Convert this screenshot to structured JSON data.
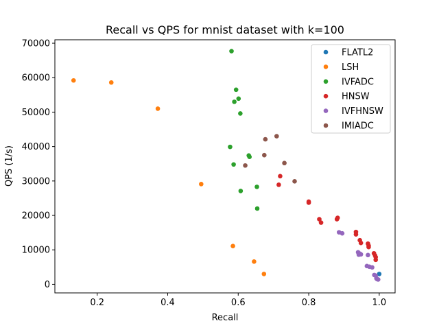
{
  "chart_data": {
    "type": "scatter",
    "title": "Recall vs QPS for mnist dataset with k=100",
    "xlabel": "Recall",
    "ylabel": "QPS (1/s)",
    "xlim": [
      0.08,
      1.045
    ],
    "ylim": [
      -2500,
      71000
    ],
    "x_ticks": [
      0.2,
      0.4,
      0.6,
      0.8,
      1.0
    ],
    "x_tick_labels": [
      "0.2",
      "0.4",
      "0.6",
      "0.8",
      "1.0"
    ],
    "y_ticks": [
      0,
      10000,
      20000,
      30000,
      40000,
      50000,
      60000,
      70000
    ],
    "y_tick_labels": [
      "0",
      "10000",
      "20000",
      "30000",
      "40000",
      "50000",
      "60000",
      "70000"
    ],
    "grid": false,
    "legend_position": "top-right",
    "series": [
      {
        "name": "FLATL2",
        "color": "#1f77b4",
        "points": [
          [
            1.0,
            3000
          ]
        ]
      },
      {
        "name": "LSH",
        "color": "#ff7f0e",
        "points": [
          [
            0.133,
            59200
          ],
          [
            0.24,
            58600
          ],
          [
            0.372,
            51000
          ],
          [
            0.495,
            29100
          ],
          [
            0.585,
            11100
          ],
          [
            0.645,
            6600
          ],
          [
            0.673,
            3000
          ]
        ]
      },
      {
        "name": "IVFADC",
        "color": "#2ca02c",
        "points": [
          [
            0.581,
            67700
          ],
          [
            0.594,
            56500
          ],
          [
            0.601,
            53900
          ],
          [
            0.589,
            53000
          ],
          [
            0.606,
            49600
          ],
          [
            0.577,
            39900
          ],
          [
            0.63,
            37400
          ],
          [
            0.632,
            37000
          ],
          [
            0.587,
            34800
          ],
          [
            0.653,
            28300
          ],
          [
            0.607,
            27100
          ],
          [
            0.654,
            22000
          ]
        ]
      },
      {
        "name": "HNSW",
        "color": "#d62728",
        "points": [
          [
            0.719,
            31400
          ],
          [
            0.715,
            28900
          ],
          [
            0.8,
            24000
          ],
          [
            0.8,
            23700
          ],
          [
            0.882,
            19300
          ],
          [
            0.88,
            18900
          ],
          [
            0.83,
            18900
          ],
          [
            0.835,
            17900
          ],
          [
            0.934,
            15200
          ],
          [
            0.934,
            14500
          ],
          [
            0.945,
            12800
          ],
          [
            0.948,
            12000
          ],
          [
            0.968,
            11800
          ],
          [
            0.97,
            11200
          ],
          [
            0.97,
            10800
          ],
          [
            0.985,
            9000
          ],
          [
            0.988,
            8400
          ],
          [
            0.99,
            7900
          ],
          [
            0.99,
            7100
          ]
        ]
      },
      {
        "name": "IVFHNSW",
        "color": "#9467bd",
        "points": [
          [
            0.886,
            15100
          ],
          [
            0.895,
            14800
          ],
          [
            0.94,
            9300
          ],
          [
            0.945,
            8900
          ],
          [
            0.942,
            8600
          ],
          [
            0.948,
            8700
          ],
          [
            0.968,
            8500
          ],
          [
            0.965,
            5300
          ],
          [
            0.972,
            5100
          ],
          [
            0.98,
            4900
          ],
          [
            0.986,
            2700
          ],
          [
            0.99,
            2500
          ],
          [
            0.992,
            1700
          ],
          [
            0.994,
            1500
          ],
          [
            0.997,
            1400
          ]
        ]
      },
      {
        "name": "IMIADC",
        "color": "#8c564b",
        "points": [
          [
            0.709,
            43000
          ],
          [
            0.677,
            42100
          ],
          [
            0.674,
            37500
          ],
          [
            0.731,
            35200
          ],
          [
            0.62,
            34500
          ],
          [
            0.76,
            29900
          ]
        ]
      }
    ]
  }
}
